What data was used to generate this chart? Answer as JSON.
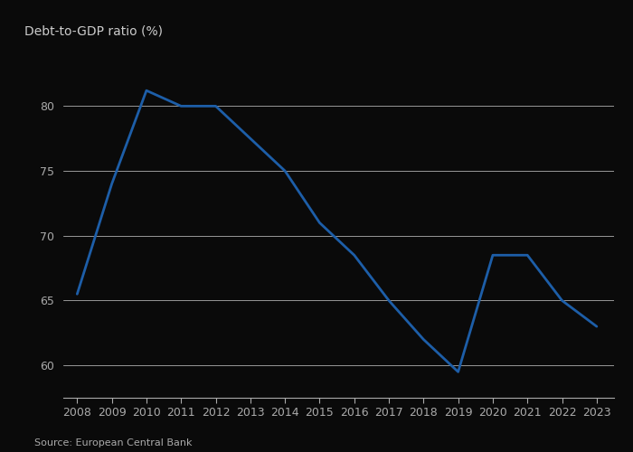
{
  "years": [
    2008,
    2009,
    2010,
    2011,
    2012,
    2013,
    2014,
    2015,
    2016,
    2017,
    2018,
    2019,
    2020,
    2021,
    2022,
    2023
  ],
  "values": [
    65.5,
    74.0,
    81.2,
    80.0,
    80.0,
    77.5,
    75.0,
    71.0,
    68.5,
    65.0,
    62.0,
    59.5,
    68.5,
    68.5,
    65.0,
    63.0
  ],
  "line_color": "#1d5ea8",
  "ylabel": "Debt-to-GDP ratio (%)",
  "source": "Source: European Central Bank",
  "yticks": [
    60,
    65,
    70,
    75,
    80
  ],
  "ylim": [
    57.5,
    84
  ],
  "xlim": [
    2007.6,
    2023.5
  ],
  "bg_color": "#0a0a0a",
  "grid_color": "#d0d0d0",
  "text_color": "#cccccc",
  "tick_label_color": "#aaaaaa",
  "line_width": 2.0,
  "title_fontsize": 10,
  "tick_fontsize": 9,
  "source_fontsize": 8
}
